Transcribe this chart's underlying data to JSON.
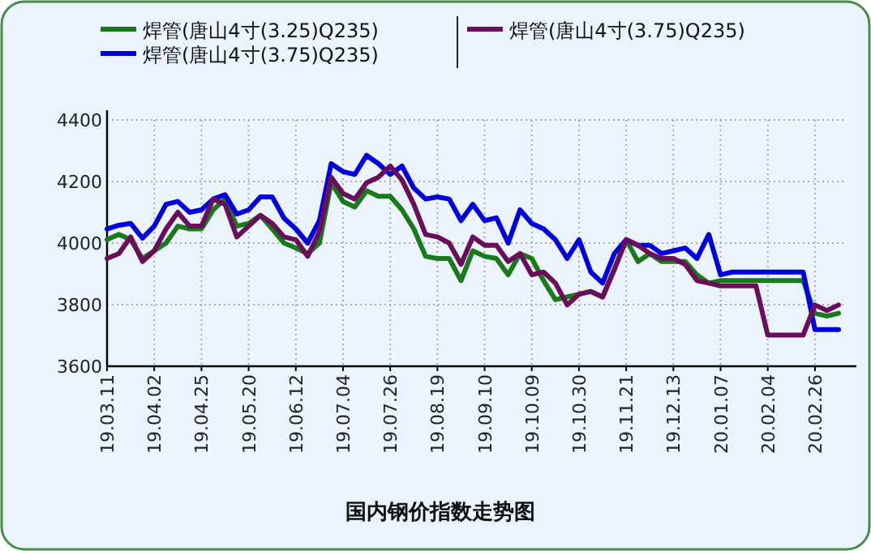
{
  "chart_data": {
    "type": "line",
    "title": "国内钢价指数走势图",
    "legend": "top",
    "categories": [
      "19.03.11",
      null,
      null,
      null,
      "19.04.02",
      null,
      null,
      null,
      "19.04.25",
      null,
      null,
      null,
      "19.05.20",
      null,
      null,
      null,
      "19.06.12",
      null,
      null,
      null,
      "19.07.04",
      null,
      null,
      null,
      "19.07.26",
      null,
      null,
      null,
      "19.08.19",
      null,
      null,
      null,
      "19.09.10",
      null,
      null,
      null,
      "19.10.09",
      null,
      null,
      null,
      "19.10.30",
      null,
      null,
      null,
      "19.11.21",
      null,
      null,
      null,
      "19.12.13",
      null,
      null,
      null,
      "20.01.07",
      null,
      null,
      null,
      "20.02.04",
      null,
      null,
      null,
      "20.02.26",
      null,
      null
    ],
    "series": [
      {
        "name": "焊管(唐山4寸(3.25)Q235)",
        "color": "#1a7a1a",
        "values": [
          4011,
          4028,
          4011,
          3950,
          3975,
          4000,
          4055,
          4046,
          4046,
          4108,
          4143,
          4055,
          4064,
          4090,
          4046,
          4000,
          3984,
          3966,
          4000,
          4196,
          4135,
          4117,
          4170,
          4152,
          4152,
          4108,
          4046,
          3957,
          3950,
          3950,
          3878,
          3975,
          3957,
          3950,
          3897,
          3966,
          3950,
          3878,
          3816,
          3825,
          3834,
          3843,
          3825,
          3915,
          4011,
          3940,
          3966,
          3940,
          3940,
          3940,
          3897,
          3870,
          3878,
          3878,
          3878,
          3878,
          3878,
          3878,
          3878,
          3878,
          3772,
          3763,
          3772
        ]
      },
      {
        "name": "焊管(唐山4寸(3.75)Q235)",
        "color": "#0000dd",
        "values": [
          4046,
          4058,
          4064,
          4016,
          4055,
          4126,
          4135,
          4100,
          4108,
          4143,
          4157,
          4094,
          4108,
          4150,
          4150,
          4081,
          4046,
          4000,
          4073,
          4258,
          4232,
          4223,
          4285,
          4258,
          4223,
          4250,
          4179,
          4143,
          4150,
          4143,
          4073,
          4126,
          4073,
          4082,
          4000,
          4108,
          4064,
          4046,
          4011,
          3950,
          4011,
          3906,
          3870,
          3966,
          4011,
          3993,
          3993,
          3966,
          3975,
          3984,
          3950,
          4028,
          3897,
          3906,
          3906,
          3906,
          3906,
          3906,
          3906,
          3906,
          3719,
          3719,
          3719
        ]
      },
      {
        "name": "焊管(唐山4寸(3.75)Q235)",
        "color": "#6a0d5a",
        "values": [
          3950,
          3966,
          4020,
          3940,
          3975,
          4046,
          4100,
          4055,
          4055,
          4143,
          4126,
          4020,
          4055,
          4090,
          4064,
          4020,
          4011,
          3957,
          4037,
          4214,
          4161,
          4143,
          4196,
          4214,
          4250,
          4205,
          4126,
          4028,
          4020,
          4000,
          3931,
          4020,
          3993,
          3993,
          3940,
          3966,
          3897,
          3906,
          3870,
          3799,
          3834,
          3843,
          3825,
          3915,
          4011,
          3993,
          3966,
          3950,
          3950,
          3931,
          3878,
          3870,
          3861,
          3861,
          3861,
          3861,
          3701,
          3701,
          3701,
          3701,
          3799,
          3781,
          3799
        ]
      }
    ],
    "ylim": [
      3600,
      4400
    ],
    "yticks": [
      3600,
      3800,
      4000,
      4200,
      4400
    ],
    "grid": true,
    "line_style": "solid",
    "marker": "none"
  }
}
